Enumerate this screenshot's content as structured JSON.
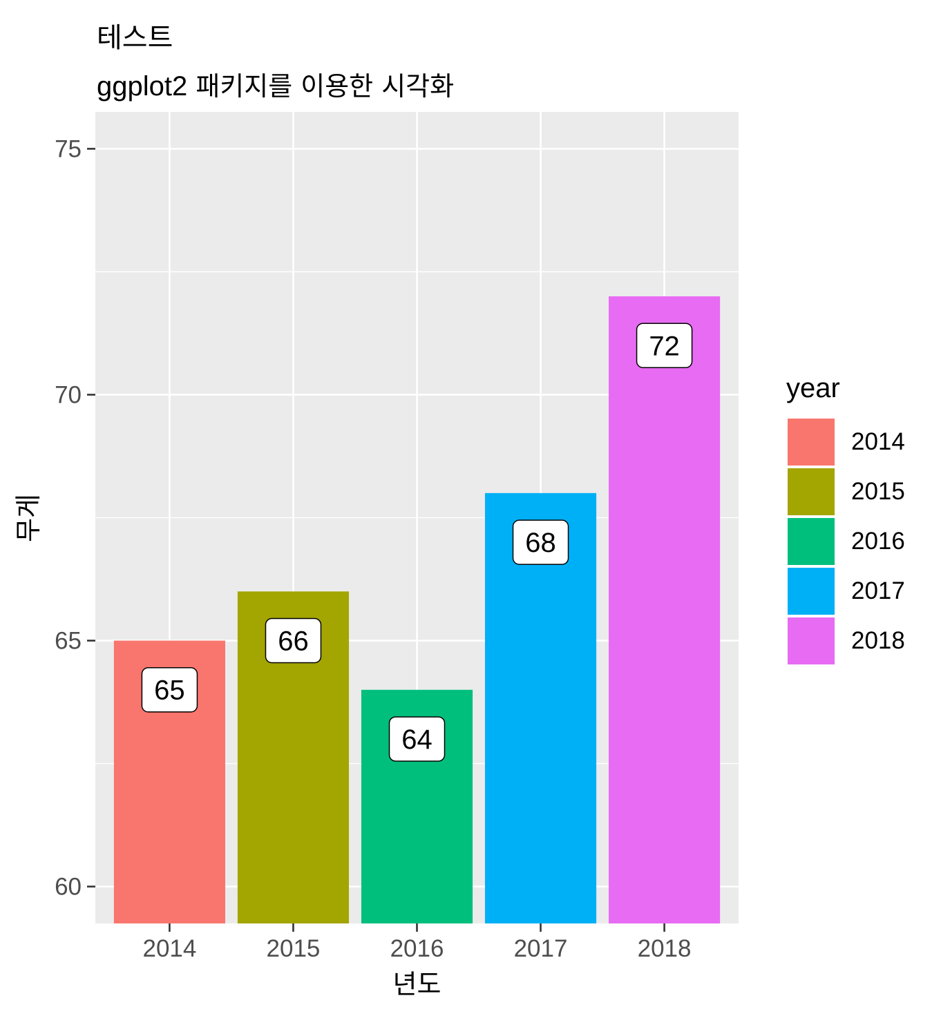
{
  "title": "테스트",
  "subtitle_prefix": "ggplot2",
  "subtitle_rest": " 패키지를 이용한 시각화",
  "chart_data": {
    "type": "bar",
    "categories": [
      "2014",
      "2015",
      "2016",
      "2017",
      "2018"
    ],
    "values": [
      65,
      66,
      64,
      68,
      72
    ],
    "data_labels": [
      "65",
      "66",
      "64",
      "68",
      "72"
    ],
    "colors": [
      "#F8766D",
      "#A3A500",
      "#00BF7D",
      "#00B0F6",
      "#E76BF3"
    ],
    "xlabel": "년도",
    "ylabel": "무게",
    "ylim": [
      59.25,
      75.75
    ],
    "yticks": [
      60,
      65,
      70,
      75
    ],
    "ytick_labels": [
      "60",
      "65",
      "70",
      "75"
    ],
    "panel_background": "#EBEBEB",
    "grid": true,
    "legend": {
      "title": "year",
      "position": "right",
      "entries": [
        "2014",
        "2015",
        "2016",
        "2017",
        "2018"
      ]
    }
  }
}
